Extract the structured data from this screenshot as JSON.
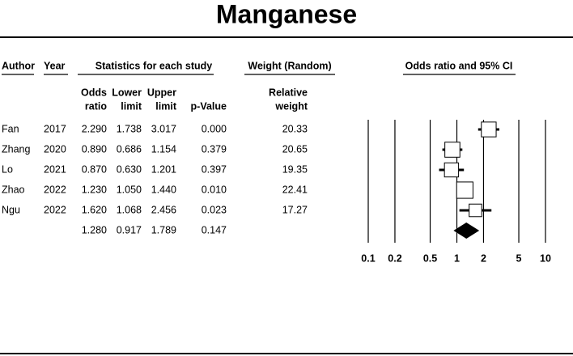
{
  "chart_data": {
    "type": "forest",
    "title": "Manganese",
    "headers": {
      "author": "Author",
      "year": "Year",
      "stats": "Statistics for each study",
      "weight": "Weight (Random)",
      "plot": "Odds ratio and 95% CI"
    },
    "subheaders": {
      "odds": [
        "Odds",
        "ratio"
      ],
      "lower": [
        "Lower",
        "limit"
      ],
      "upper": [
        "Upper",
        "limit"
      ],
      "p": [
        "p-Value"
      ],
      "weight": [
        "Relative",
        "weight"
      ]
    },
    "categories": [
      "Fan",
      "Zhang",
      "Lo",
      "Zhao",
      "Ngu",
      null
    ],
    "years": [
      2017,
      2020,
      2021,
      2022,
      2022,
      null
    ],
    "odds_ratio": {
      "values": [
        2.29,
        0.89,
        0.87,
        1.23,
        1.62,
        1.28
      ],
      "value_labels": [
        "2.290",
        "0.890",
        "0.870",
        "1.230",
        "1.620",
        "1.280"
      ]
    },
    "lower": {
      "values": [
        1.738,
        0.686,
        0.63,
        1.05,
        1.068,
        0.917
      ],
      "value_labels": [
        "1.738",
        "0.686",
        "0.630",
        "1.050",
        "1.068",
        "0.917"
      ]
    },
    "upper": {
      "values": [
        3.017,
        1.154,
        1.201,
        1.44,
        2.456,
        1.789
      ],
      "value_labels": [
        "3.017",
        "1.154",
        "1.201",
        "1.440",
        "2.456",
        "1.789"
      ]
    },
    "p_value": {
      "values": [
        0,
        0.379,
        0.397,
        0.01,
        0.023,
        0.147
      ],
      "value_labels": [
        "0.000",
        "0.379",
        "0.397",
        "0.010",
        "0.023",
        "0.147"
      ]
    },
    "weight": {
      "values": [
        20.33,
        20.65,
        19.35,
        22.41,
        17.27,
        null
      ]
    },
    "xlim": [
      0.1,
      10
    ],
    "xticks": [
      0.1,
      0.2,
      0.5,
      1,
      2,
      5,
      10
    ],
    "log_x": true,
    "grid": true,
    "color": "#000000"
  }
}
